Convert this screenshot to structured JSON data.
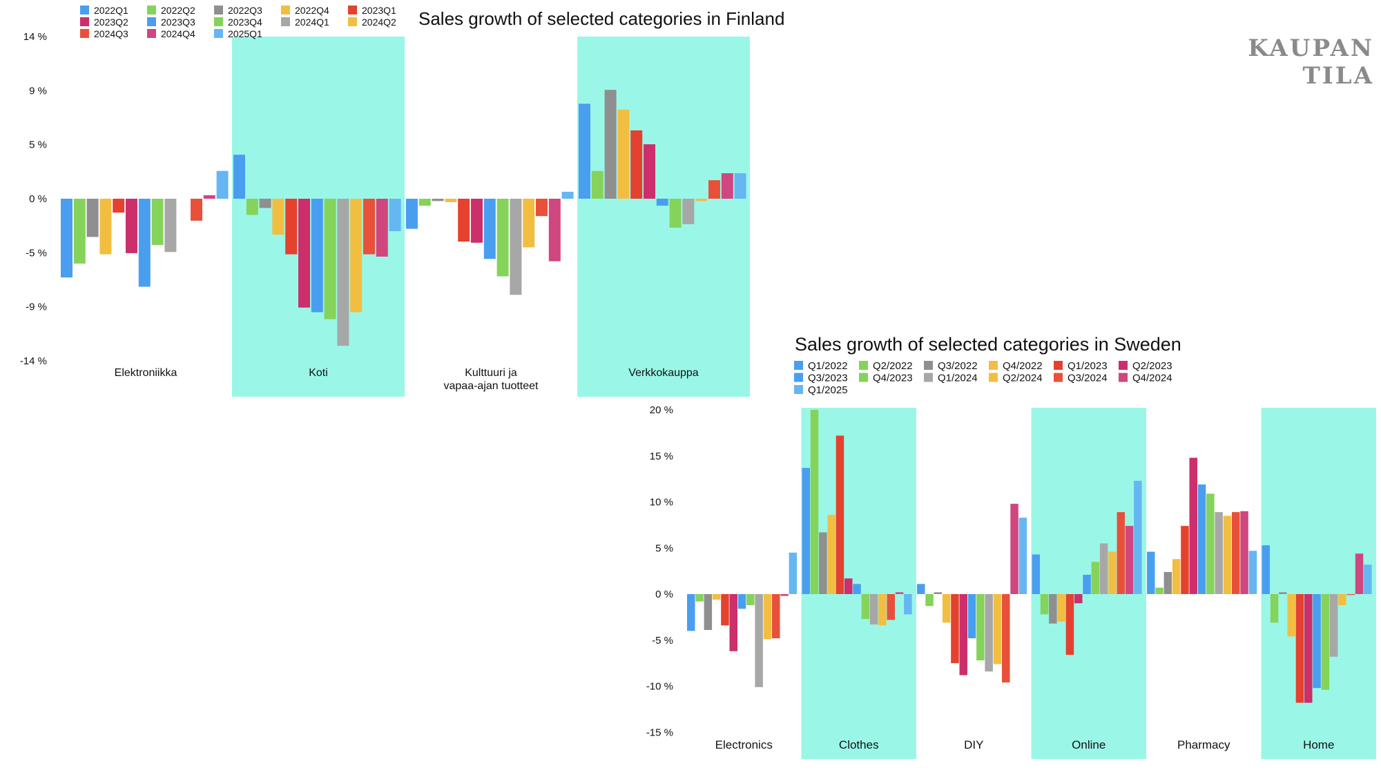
{
  "brand": "KAUPAN TILA",
  "colors": {
    "highlight": "#9af7e8",
    "palette": [
      "#4a9ef0",
      "#85d35a",
      "#8f8f8f",
      "#f2be42",
      "#e4412f",
      "#cc2f6b",
      "#4a9ef0",
      "#85d35a",
      "#a7a7a7",
      "#f2be42",
      "#e9503a",
      "#d0467e",
      "#66b6f2"
    ]
  },
  "chart_data": [
    {
      "type": "bar",
      "title": "Sales growth of selected categories in Finland",
      "xlabel": "",
      "ylabel": "",
      "ylim": [
        -14,
        14
      ],
      "yticks": [
        {
          "value": 14,
          "label": "14 %"
        },
        {
          "value": 9.33,
          "label": "9 %"
        },
        {
          "value": 4.67,
          "label": "5 %"
        },
        {
          "value": 0,
          "label": "0 %"
        },
        {
          "value": -4.67,
          "label": "-5 %"
        },
        {
          "value": -9.33,
          "label": "-9 %"
        },
        {
          "value": -14,
          "label": "-14 %"
        }
      ],
      "categories": [
        "Elektroniikka",
        "Koti",
        "Kulttuuri ja vapaa-ajan tuotteet",
        "Verkkokauppa"
      ],
      "category_label_lines": [
        [
          "Elektroniikka"
        ],
        [
          "Koti"
        ],
        [
          "Kulttuuri ja",
          "vapaa-ajan tuotteet"
        ],
        [
          "Verkkokauppa"
        ]
      ],
      "highlighted": [
        false,
        true,
        false,
        true
      ],
      "legend": [
        "2022Q1",
        "2022Q2",
        "2022Q3",
        "2022Q4",
        "2023Q1",
        "2023Q2",
        "2023Q3",
        "2023Q4",
        "2024Q1",
        "2024Q2",
        "2024Q3",
        "2024Q4",
        "2025Q1"
      ],
      "legend_order": [
        0,
        1,
        2,
        3,
        4,
        5,
        6,
        7,
        8,
        9,
        10,
        11,
        12
      ],
      "series_colors": [
        "#4a9ef0",
        "#85d35a",
        "#8f8f8f",
        "#f2be42",
        "#e4412f",
        "#cc2f6b",
        "#4a9ef0",
        "#85d35a",
        "#a7a7a7",
        "#f2be42",
        "#e9503a",
        "#d0467e",
        "#66b6f2"
      ],
      "series": [
        {
          "name": "2022Q1",
          "values": [
            -6.8,
            3.8,
            -2.6,
            8.2
          ]
        },
        {
          "name": "2022Q2",
          "values": [
            -5.6,
            -1.4,
            -0.6,
            2.4
          ]
        },
        {
          "name": "2022Q3",
          "values": [
            -3.3,
            -0.8,
            -0.2,
            9.4
          ]
        },
        {
          "name": "2022Q4",
          "values": [
            -4.8,
            -3.1,
            -0.3,
            7.7
          ]
        },
        {
          "name": "2023Q1",
          "values": [
            -1.2,
            -4.8,
            -3.7,
            5.9
          ]
        },
        {
          "name": "2023Q2",
          "values": [
            -4.7,
            -9.4,
            -3.8,
            4.7
          ]
        },
        {
          "name": "2023Q3",
          "values": [
            -7.6,
            -9.8,
            -5.2,
            -0.6
          ]
        },
        {
          "name": "2023Q4",
          "values": [
            -4.0,
            -10.4,
            -6.7,
            -2.5
          ]
        },
        {
          "name": "2024Q1",
          "values": [
            -4.6,
            -12.7,
            -8.3,
            -2.2
          ]
        },
        {
          "name": "2024Q2",
          "values": [
            0,
            -9.8,
            -4.2,
            -0.2
          ]
        },
        {
          "name": "2024Q3",
          "values": [
            -1.9,
            -4.8,
            -1.5,
            1.6
          ]
        },
        {
          "name": "2024Q4",
          "values": [
            0.3,
            -5.0,
            -5.4,
            2.2
          ]
        },
        {
          "name": "2025Q1",
          "values": [
            2.4,
            -2.8,
            0.6,
            2.2
          ]
        }
      ]
    },
    {
      "type": "bar",
      "title": "Sales growth of selected categories in Sweden",
      "xlabel": "",
      "ylabel": "",
      "ylim": [
        -15,
        20
      ],
      "yticks": [
        {
          "value": 20,
          "label": "20 %"
        },
        {
          "value": 15,
          "label": "15 %"
        },
        {
          "value": 10,
          "label": "10 %"
        },
        {
          "value": 5,
          "label": "5 %"
        },
        {
          "value": 0,
          "label": "0 %"
        },
        {
          "value": -5,
          "label": "-5 %"
        },
        {
          "value": -10,
          "label": "-10 %"
        },
        {
          "value": -15,
          "label": "-15 %"
        }
      ],
      "categories": [
        "Electronics",
        "Clothes",
        "DIY",
        "Online",
        "Pharmacy",
        "Home"
      ],
      "category_label_lines": [
        [
          "Electronics"
        ],
        [
          "Clothes"
        ],
        [
          "DIY"
        ],
        [
          "Online"
        ],
        [
          "Pharmacy"
        ],
        [
          "Home"
        ]
      ],
      "highlighted": [
        false,
        true,
        false,
        true,
        false,
        true
      ],
      "legend": [
        "Q1/2022",
        "Q2/2022",
        "Q3/2022",
        "Q4/2022",
        "Q1/2023",
        "Q2/2023",
        "Q3/2023",
        "Q4/2023",
        "Q1/2024",
        "Q2/2024",
        "Q3/2024",
        "Q4/2024",
        "Q1/2025"
      ],
      "legend_order": [
        0,
        1,
        2,
        3,
        4,
        5,
        6,
        7,
        8,
        9,
        10,
        11,
        12
      ],
      "series_colors": [
        "#4a9ef0",
        "#85d35a",
        "#8f8f8f",
        "#f2be42",
        "#e4412f",
        "#cc2f6b",
        "#4a9ef0",
        "#85d35a",
        "#a7a7a7",
        "#f2be42",
        "#e9503a",
        "#d0467e",
        "#66b6f2"
      ],
      "series": [
        {
          "name": "Q1/2022",
          "values": [
            -4.0,
            13.7,
            1.1,
            4.3,
            4.6,
            5.3
          ]
        },
        {
          "name": "Q2/2022",
          "values": [
            -0.8,
            20.0,
            -1.3,
            -2.2,
            0.7,
            -3.1
          ]
        },
        {
          "name": "Q3/2022",
          "values": [
            -3.9,
            6.7,
            0.2,
            -3.2,
            2.4,
            0.2
          ]
        },
        {
          "name": "Q4/2022",
          "values": [
            -0.6,
            8.6,
            -3.1,
            -3.0,
            3.8,
            -4.6
          ]
        },
        {
          "name": "Q1/2023",
          "values": [
            -3.4,
            17.2,
            -7.5,
            -6.6,
            7.4,
            -11.8
          ]
        },
        {
          "name": "Q2/2023",
          "values": [
            -6.2,
            1.7,
            -8.8,
            -1.0,
            14.8,
            -11.8
          ]
        },
        {
          "name": "Q3/2023",
          "values": [
            -1.6,
            1.1,
            -4.8,
            2.1,
            11.9,
            -10.2
          ]
        },
        {
          "name": "Q4/2023",
          "values": [
            -1.2,
            -2.7,
            -7.2,
            3.5,
            10.9,
            -10.4
          ]
        },
        {
          "name": "Q1/2024",
          "values": [
            -10.1,
            -3.3,
            -8.4,
            5.5,
            8.9,
            -6.8
          ]
        },
        {
          "name": "Q2/2024",
          "values": [
            -4.9,
            -3.4,
            -7.6,
            4.6,
            8.5,
            -1.2
          ]
        },
        {
          "name": "Q3/2024",
          "values": [
            -4.8,
            -2.8,
            -9.6,
            8.9,
            8.9,
            -0.1
          ]
        },
        {
          "name": "Q4/2024",
          "values": [
            -0.2,
            0.2,
            9.8,
            7.4,
            9.0,
            4.4
          ]
        },
        {
          "name": "Q1/2025",
          "values": [
            4.5,
            -2.2,
            8.3,
            12.3,
            4.7,
            3.2
          ]
        }
      ]
    }
  ]
}
